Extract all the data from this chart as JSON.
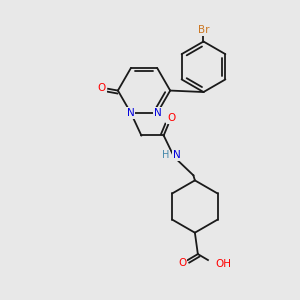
{
  "background_color": "#e8e8e8",
  "bond_color": "#1a1a1a",
  "atom_colors": {
    "N": "#0000dd",
    "O": "#ff0000",
    "Br": "#cc7722",
    "NH": "#4488aa"
  },
  "figsize": [
    3.0,
    3.0
  ],
  "dpi": 100
}
